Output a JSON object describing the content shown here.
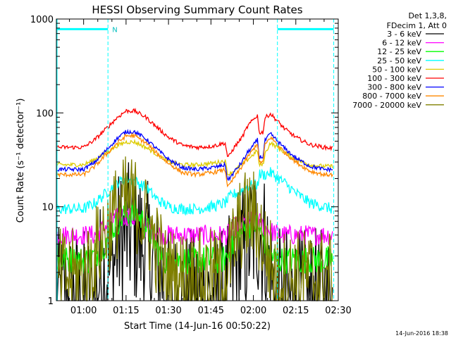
{
  "chart_data": {
    "type": "line",
    "title": "HESSI Observing Summary Count Rates",
    "xlabel": "Start Time (14-Jun-16 00:50:22)",
    "ylabel": "Count Rate (s⁻¹ detector⁻¹)",
    "x_unit": "minutes",
    "xlim": [
      50.37,
      150
    ],
    "ylim": [
      1,
      1000
    ],
    "yscale": "log",
    "xticks": [
      {
        "x": 60,
        "label": "01:00"
      },
      {
        "x": 75,
        "label": "01:15"
      },
      {
        "x": 90,
        "label": "01:30"
      },
      {
        "x": 105,
        "label": "01:45"
      },
      {
        "x": 120,
        "label": "02:00"
      },
      {
        "x": 135,
        "label": "02:15"
      },
      {
        "x": 150,
        "label": "02:30"
      }
    ],
    "yticks": [
      {
        "y": 1,
        "label": "1"
      },
      {
        "y": 10,
        "label": "10"
      },
      {
        "y": 100,
        "label": "100"
      },
      {
        "y": 1000,
        "label": "1000"
      }
    ],
    "legend": {
      "placement": "outside-right",
      "header": [
        "Det 1,3,8,",
        "FDecim 1, Att 0"
      ]
    },
    "series": [
      {
        "name": "3 - 6 keV",
        "color": "#000000",
        "points": [
          [
            50.4,
            1
          ],
          [
            64,
            1
          ],
          [
            66,
            2
          ],
          [
            70,
            2
          ],
          [
            72,
            4
          ],
          [
            75,
            5
          ],
          [
            78,
            5
          ],
          [
            81,
            4
          ],
          [
            83,
            3
          ],
          [
            86,
            2
          ],
          [
            88,
            2
          ],
          [
            89,
            1
          ],
          [
            96,
            1
          ],
          [
            98,
            1
          ],
          [
            103,
            1
          ],
          [
            110,
            1
          ],
          [
            113,
            2
          ],
          [
            116,
            3
          ],
          [
            118,
            4
          ],
          [
            120,
            5
          ],
          [
            122,
            6
          ],
          [
            124,
            4
          ],
          [
            126,
            2
          ],
          [
            128,
            1
          ],
          [
            135,
            1
          ],
          [
            137,
            1
          ],
          [
            142,
            1
          ],
          [
            145,
            1
          ],
          [
            148,
            1
          ]
        ]
      },
      {
        "name": "6 - 12 keV",
        "color": "#ff00ff",
        "points": [
          [
            50.4,
            5
          ],
          [
            61,
            5
          ],
          [
            64,
            5
          ],
          [
            67,
            6
          ],
          [
            70,
            7
          ],
          [
            73,
            8
          ],
          [
            76,
            8
          ],
          [
            79,
            7
          ],
          [
            82,
            6
          ],
          [
            85,
            5.5
          ],
          [
            88,
            5
          ],
          [
            95,
            5
          ],
          [
            100,
            5
          ],
          [
            108,
            5
          ],
          [
            111,
            5
          ],
          [
            113,
            6
          ],
          [
            116,
            6.5
          ],
          [
            118,
            7
          ],
          [
            121,
            7.5
          ],
          [
            124,
            6
          ],
          [
            126,
            5.5
          ],
          [
            130,
            5
          ],
          [
            135,
            5
          ],
          [
            140,
            5
          ],
          [
            148,
            5
          ]
        ]
      },
      {
        "name": "12 - 25 keV",
        "color": "#00ff00",
        "points": [
          [
            50.4,
            2.7
          ],
          [
            62,
            2.7
          ],
          [
            66,
            3.5
          ],
          [
            69,
            5
          ],
          [
            72,
            7
          ],
          [
            75,
            8.5
          ],
          [
            78,
            8.5
          ],
          [
            81,
            7
          ],
          [
            84,
            5
          ],
          [
            86,
            3.5
          ],
          [
            88,
            2.7
          ],
          [
            96,
            2.7
          ],
          [
            104,
            2.7
          ],
          [
            108,
            2.7
          ],
          [
            110,
            2.8
          ],
          [
            113,
            4
          ],
          [
            116,
            5.5
          ],
          [
            119,
            6.5
          ],
          [
            121,
            6.5
          ],
          [
            123,
            5
          ],
          [
            125,
            3.5
          ],
          [
            128,
            2.7
          ],
          [
            135,
            2.7
          ],
          [
            142,
            2.7
          ],
          [
            148,
            2.7
          ]
        ]
      },
      {
        "name": "25 - 50 keV",
        "color": "#00ffff",
        "points": [
          [
            50.4,
            9.5
          ],
          [
            60,
            9.5
          ],
          [
            64,
            11
          ],
          [
            68,
            14
          ],
          [
            72,
            18
          ],
          [
            75,
            20
          ],
          [
            78,
            19
          ],
          [
            82,
            16
          ],
          [
            86,
            12
          ],
          [
            90,
            10
          ],
          [
            95,
            9.5
          ],
          [
            100,
            9.5
          ],
          [
            105,
            10
          ],
          [
            108,
            10.5
          ],
          [
            110,
            11
          ],
          [
            112,
            13
          ],
          [
            114,
            14
          ],
          [
            116,
            15
          ],
          [
            118,
            16.5
          ],
          [
            120,
            17
          ],
          [
            121.5,
            17
          ],
          [
            122,
            22
          ],
          [
            124,
            22
          ],
          [
            126,
            23
          ],
          [
            128,
            21
          ],
          [
            131,
            18
          ],
          [
            135,
            14
          ],
          [
            140,
            11
          ],
          [
            145,
            10
          ],
          [
            148,
            9.5
          ]
        ]
      },
      {
        "name": "50 - 100 keV",
        "color": "#ddcc00",
        "points": [
          [
            50.4,
            28
          ],
          [
            60,
            28
          ],
          [
            64,
            32
          ],
          [
            68,
            38
          ],
          [
            72,
            45
          ],
          [
            75,
            49
          ],
          [
            78,
            49
          ],
          [
            82,
            43
          ],
          [
            86,
            36
          ],
          [
            90,
            30
          ],
          [
            95,
            28
          ],
          [
            100,
            28
          ],
          [
            105,
            29
          ],
          [
            108,
            30
          ],
          [
            110,
            31
          ],
          [
            111,
            22
          ],
          [
            113,
            24
          ],
          [
            116,
            28
          ],
          [
            118,
            32
          ],
          [
            120,
            36
          ],
          [
            121.5,
            40
          ],
          [
            122,
            28
          ],
          [
            123.5,
            28
          ],
          [
            124,
            36
          ],
          [
            126,
            48
          ],
          [
            128,
            44
          ],
          [
            131,
            38
          ],
          [
            135,
            32
          ],
          [
            140,
            28
          ],
          [
            145,
            27
          ],
          [
            148,
            27
          ]
        ]
      },
      {
        "name": "100 - 300 keV",
        "color": "#ff0000",
        "points": [
          [
            50.4,
            43
          ],
          [
            60,
            43
          ],
          [
            64,
            52
          ],
          [
            68,
            68
          ],
          [
            72,
            90
          ],
          [
            75,
            105
          ],
          [
            78,
            105
          ],
          [
            82,
            90
          ],
          [
            86,
            70
          ],
          [
            90,
            55
          ],
          [
            95,
            45
          ],
          [
            100,
            43
          ],
          [
            105,
            44
          ],
          [
            108,
            46
          ],
          [
            110,
            48
          ],
          [
            111,
            33
          ],
          [
            113,
            42
          ],
          [
            116,
            55
          ],
          [
            118,
            72
          ],
          [
            120,
            85
          ],
          [
            121.5,
            95
          ],
          [
            122,
            62
          ],
          [
            123.5,
            62
          ],
          [
            124,
            88
          ],
          [
            126,
            98
          ],
          [
            128,
            85
          ],
          [
            131,
            68
          ],
          [
            135,
            55
          ],
          [
            140,
            46
          ],
          [
            145,
            43
          ],
          [
            148,
            42
          ]
        ]
      },
      {
        "name": "300 - 800 keV",
        "color": "#0000ff",
        "points": [
          [
            50.4,
            25
          ],
          [
            60,
            25
          ],
          [
            64,
            30
          ],
          [
            68,
            40
          ],
          [
            72,
            54
          ],
          [
            75,
            63
          ],
          [
            78,
            63
          ],
          [
            82,
            53
          ],
          [
            86,
            41
          ],
          [
            90,
            32
          ],
          [
            95,
            26
          ],
          [
            100,
            25
          ],
          [
            105,
            26
          ],
          [
            108,
            27
          ],
          [
            110,
            28
          ],
          [
            111,
            19
          ],
          [
            113,
            23
          ],
          [
            116,
            30
          ],
          [
            118,
            38
          ],
          [
            120,
            45
          ],
          [
            121.5,
            52
          ],
          [
            122,
            34
          ],
          [
            123.5,
            34
          ],
          [
            124,
            50
          ],
          [
            126,
            60
          ],
          [
            128,
            52
          ],
          [
            131,
            42
          ],
          [
            135,
            33
          ],
          [
            140,
            27
          ],
          [
            145,
            25
          ],
          [
            148,
            25
          ]
        ]
      },
      {
        "name": "800 - 7000 keV",
        "color": "#ff8800",
        "points": [
          [
            50.4,
            22
          ],
          [
            60,
            22
          ],
          [
            64,
            27
          ],
          [
            68,
            36
          ],
          [
            72,
            48
          ],
          [
            75,
            57
          ],
          [
            78,
            57
          ],
          [
            82,
            48
          ],
          [
            86,
            37
          ],
          [
            90,
            29
          ],
          [
            95,
            23
          ],
          [
            100,
            22
          ],
          [
            105,
            23
          ],
          [
            108,
            24
          ],
          [
            110,
            25
          ],
          [
            111,
            16
          ],
          [
            113,
            20
          ],
          [
            116,
            27
          ],
          [
            118,
            34
          ],
          [
            120,
            41
          ],
          [
            121.5,
            48
          ],
          [
            122,
            30
          ],
          [
            123.5,
            30
          ],
          [
            124,
            45
          ],
          [
            126,
            55
          ],
          [
            128,
            48
          ],
          [
            131,
            38
          ],
          [
            135,
            30
          ],
          [
            140,
            24
          ],
          [
            145,
            22
          ],
          [
            148,
            22
          ]
        ]
      },
      {
        "name": "7000 - 20000 keV",
        "color": "#808000",
        "points": [
          [
            50.4,
            1.8
          ],
          [
            60,
            1.8
          ],
          [
            64,
            3
          ],
          [
            68,
            6
          ],
          [
            72,
            9
          ],
          [
            75,
            11
          ],
          [
            78,
            11
          ],
          [
            81,
            8
          ],
          [
            84,
            5
          ],
          [
            87,
            3
          ],
          [
            89,
            2
          ],
          [
            92,
            1.8
          ],
          [
            98,
            1.8
          ],
          [
            104,
            1.8
          ],
          [
            108,
            1.8
          ],
          [
            110,
            2
          ],
          [
            112,
            3
          ],
          [
            114,
            5
          ],
          [
            116,
            7
          ],
          [
            118,
            8
          ],
          [
            120,
            8
          ],
          [
            122,
            6
          ],
          [
            124,
            4
          ],
          [
            126,
            2.5
          ],
          [
            128,
            1.8
          ],
          [
            135,
            1.8
          ],
          [
            142,
            1.8
          ],
          [
            148,
            1.8
          ]
        ]
      }
    ],
    "annotations": {
      "mode_segments": [
        {
          "x_start": 50.4,
          "x_end": 68.6,
          "label": "N"
        },
        {
          "x_start": 128.5,
          "x_end": 148.4,
          "label": ""
        }
      ],
      "vertical_markers": [
        68.6,
        128.5,
        148.4
      ]
    }
  },
  "footer": {
    "timestamp": "14-Jun-2016 18:38"
  }
}
